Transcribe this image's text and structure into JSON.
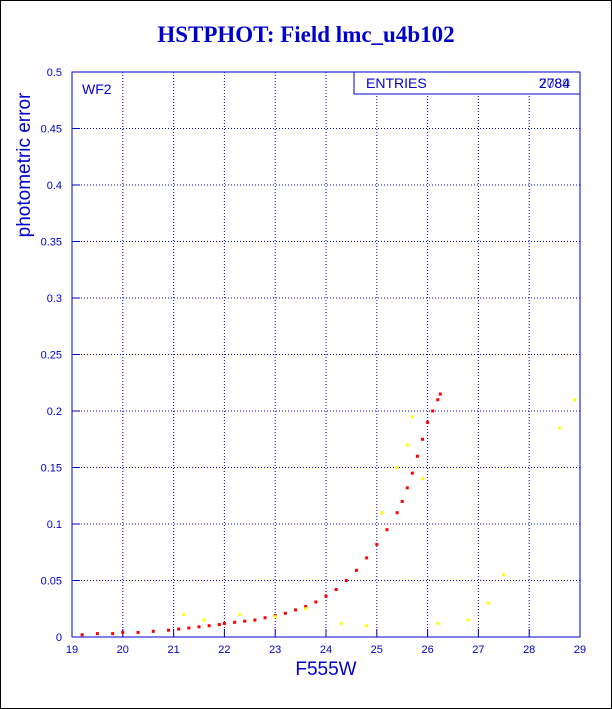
{
  "title": "HSTPHOT: Field lmc_u4b102",
  "chart_data": {
    "type": "scatter",
    "title": "HSTPHOT: Field lmc_u4b102",
    "xlabel": "F555W",
    "ylabel": "photometric error",
    "xlim": [
      19,
      29
    ],
    "ylim": [
      0,
      0.5
    ],
    "x_ticks": [
      "19",
      "20",
      "21",
      "22",
      "23",
      "24",
      "25",
      "26",
      "27",
      "28",
      "29"
    ],
    "y_ticks": [
      "0",
      "0.05",
      "0.1",
      "0.15",
      "0.2",
      "0.25",
      "0.3",
      "0.35",
      "0.4",
      "0.45",
      "0.5"
    ],
    "grid": true,
    "panel_label": "WF2",
    "stats_box": {
      "label": "ENTRIES",
      "values": [
        "2784",
        "7089"
      ]
    },
    "series": [
      {
        "color": "#ff0000",
        "x": [
          19.2,
          19.5,
          19.8,
          20.0,
          20.3,
          20.6,
          20.9,
          21.1,
          21.3,
          21.5,
          21.7,
          21.9,
          22.0,
          22.2,
          22.4,
          22.6,
          22.8,
          23.0,
          23.2,
          23.4,
          23.6,
          23.8,
          24.0,
          24.2,
          24.4,
          24.6,
          24.8,
          25.0,
          25.2,
          25.4,
          25.5,
          25.6,
          25.7,
          25.8,
          25.9,
          26.0,
          26.1,
          26.2,
          26.25
        ],
        "y": [
          0.002,
          0.003,
          0.003,
          0.004,
          0.004,
          0.005,
          0.006,
          0.007,
          0.008,
          0.009,
          0.01,
          0.011,
          0.012,
          0.013,
          0.014,
          0.015,
          0.017,
          0.019,
          0.021,
          0.024,
          0.027,
          0.031,
          0.036,
          0.042,
          0.05,
          0.059,
          0.07,
          0.082,
          0.095,
          0.11,
          0.12,
          0.132,
          0.145,
          0.16,
          0.175,
          0.19,
          0.2,
          0.21,
          0.215
        ]
      },
      {
        "color": "#ffff00",
        "x": [
          21.2,
          21.6,
          22.3,
          23.0,
          23.6,
          24.3,
          24.8,
          25.1,
          25.4,
          25.6,
          25.7,
          25.9,
          26.2,
          26.8,
          27.2,
          27.5,
          28.6,
          28.9
        ],
        "y": [
          0.02,
          0.015,
          0.02,
          0.018,
          0.025,
          0.012,
          0.01,
          0.11,
          0.15,
          0.17,
          0.195,
          0.14,
          0.012,
          0.015,
          0.03,
          0.055,
          0.185,
          0.21
        ]
      }
    ]
  }
}
